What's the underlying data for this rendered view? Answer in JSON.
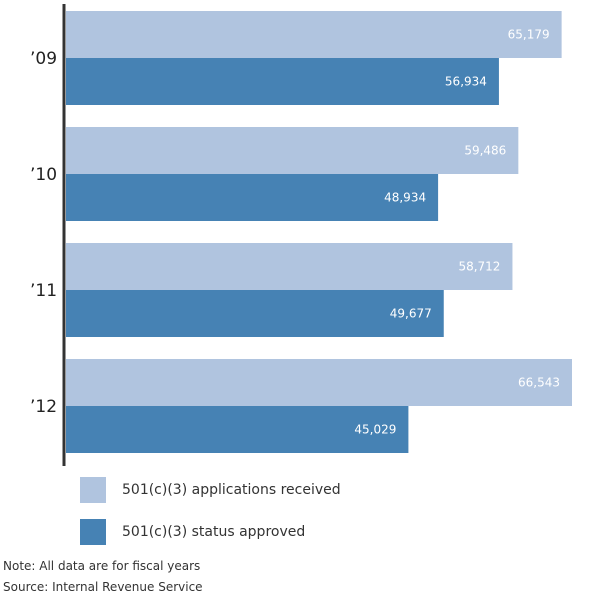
{
  "chart_data": {
    "type": "bar",
    "orientation": "horizontal",
    "categories": [
      "’09",
      "’10",
      "’11",
      "’12"
    ],
    "series": [
      {
        "name": "501(c)(3) applications received",
        "values": [
          65179,
          59486,
          58712,
          66543
        ],
        "labels": [
          "65,179",
          "59,486",
          "58,712",
          "66,543"
        ],
        "color": "#b0c4df"
      },
      {
        "name": "501(c)(3) status approved",
        "values": [
          56934,
          48934,
          49677,
          45029
        ],
        "labels": [
          "56,934",
          "48,934",
          "49,677",
          "45,029"
        ],
        "color": "#4682b4"
      }
    ],
    "xlim": [
      0,
      66543
    ],
    "grid": false,
    "legend_position": "bottom-left"
  },
  "legend": {
    "items": [
      {
        "label": "501(c)(3) applications received",
        "color": "#b0c4df"
      },
      {
        "label": "501(c)(3) status approved",
        "color": "#4682b4"
      }
    ]
  },
  "notes": {
    "note": "Note: All data are for fiscal years",
    "source": "Source: Internal Revenue Service"
  }
}
